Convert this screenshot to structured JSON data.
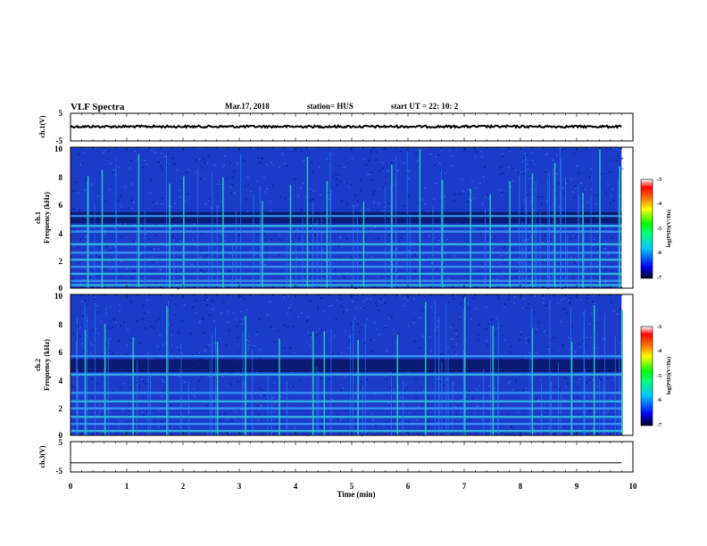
{
  "header": {
    "title": "VLF Spectra",
    "date": "Mar.17, 2018",
    "station": "station= HUS",
    "start_time": "start  UT =   22: 10: 2"
  },
  "colors": {
    "spectrogram_background": "#1a3cc8",
    "signal": "#30d0c0",
    "colorbar": [
      "#000020",
      "#0000ff",
      "#00c8ff",
      "#00ff80",
      "#00ff00",
      "#ffff00",
      "#ff8000",
      "#ff0000",
      "#ffffff"
    ]
  },
  "chart_data": [
    {
      "type": "line",
      "name": "ch1-waveform",
      "ylabel": "ch.1(V)",
      "ylim": [
        -5,
        5
      ],
      "yticks": [
        "5",
        "-5"
      ],
      "xlim": [
        0,
        10
      ],
      "level": 0.2
    },
    {
      "type": "heatmap",
      "name": "ch1-spectrogram",
      "ylabel": "ch.1",
      "ylabel2": "Frequency  (kHz)",
      "ylim": [
        0,
        10
      ],
      "yticks": [
        "0",
        "2",
        "4",
        "6",
        "8",
        "10"
      ],
      "xlim": [
        0,
        9.8
      ],
      "colorbar": {
        "label": "log(PSD)(V²/Hz)",
        "ticks": [
          "-3",
          "-4",
          "-5",
          "-6",
          "-7"
        ],
        "range": [
          -7,
          -3
        ]
      },
      "bands_khz": [
        0.2,
        0.5,
        1.0,
        1.5,
        2.0,
        2.5,
        3.1,
        4.0,
        4.4,
        5.1
      ],
      "dark_band_khz": [
        4.6,
        5.4
      ],
      "spike_times_min": [
        0.3,
        0.55,
        1.2,
        1.75,
        2.0,
        2.7,
        3.4,
        3.9,
        4.2,
        4.55,
        5.2,
        5.7,
        6.2,
        6.6,
        7.1,
        7.45,
        7.8,
        8.2,
        8.6,
        9.1,
        9.4,
        9.75
      ]
    },
    {
      "type": "heatmap",
      "name": "ch2-spectrogram",
      "ylabel": "ch.2",
      "ylabel2": "Frequency  (kHz)",
      "ylim": [
        0,
        10
      ],
      "yticks": [
        "0",
        "2",
        "4",
        "6",
        "8",
        "10"
      ],
      "xlim": [
        0,
        9.8
      ],
      "colorbar": {
        "label": "log(PSD)(V²/Hz)",
        "ticks": [
          "-3",
          "-4",
          "-5",
          "-6",
          "-7"
        ],
        "range": [
          -7,
          -3
        ]
      },
      "bands_khz": [
        0.3,
        0.8,
        1.3,
        1.9,
        2.4,
        3.0,
        4.3,
        5.6
      ],
      "dark_band_khz": [
        4.5,
        5.4
      ],
      "spike_times_min": [
        0.25,
        0.6,
        1.1,
        1.7,
        2.6,
        3.1,
        3.7,
        4.3,
        4.5,
        5.1,
        5.8,
        6.3,
        7.0,
        7.5,
        8.2,
        8.9,
        9.3,
        9.8
      ]
    },
    {
      "type": "line",
      "name": "ch3-waveform",
      "ylabel": "ch.3(V)",
      "ylim": [
        -5,
        5
      ],
      "yticks": [
        "5",
        "-5"
      ],
      "xlim": [
        0,
        10
      ],
      "level": -2
    }
  ],
  "xaxis": {
    "label": "Time  (min)",
    "ticks": [
      "0",
      "1",
      "2",
      "3",
      "4",
      "5",
      "6",
      "7",
      "8",
      "9",
      "10"
    ]
  }
}
